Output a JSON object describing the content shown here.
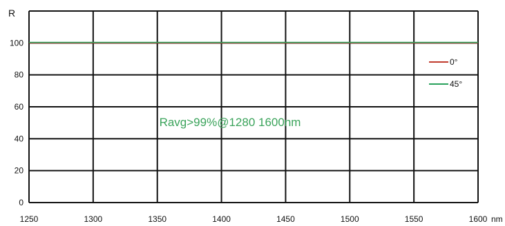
{
  "chart_data": {
    "type": "line",
    "ylabel": "R",
    "xunit": "nm",
    "xlim": [
      1250,
      1600
    ],
    "ylim": [
      0,
      120
    ],
    "xticks": [
      1250,
      1300,
      1350,
      1400,
      1450,
      1500,
      1550,
      1600
    ],
    "yticks": [
      0,
      20,
      40,
      60,
      80,
      100
    ],
    "grid": true,
    "legend": "right",
    "series": [
      {
        "name": "0°",
        "color": "#c0392b",
        "x": [
          1250,
          1600
        ],
        "y": [
          100,
          100
        ]
      },
      {
        "name": "45°",
        "color": "#27a05a",
        "x": [
          1250,
          1600
        ],
        "y": [
          100,
          100
        ]
      }
    ],
    "annotation": {
      "text": "Ravg>99%@1280 1600nm",
      "color": "#3aa35a",
      "x": 1400,
      "y": 48
    }
  }
}
